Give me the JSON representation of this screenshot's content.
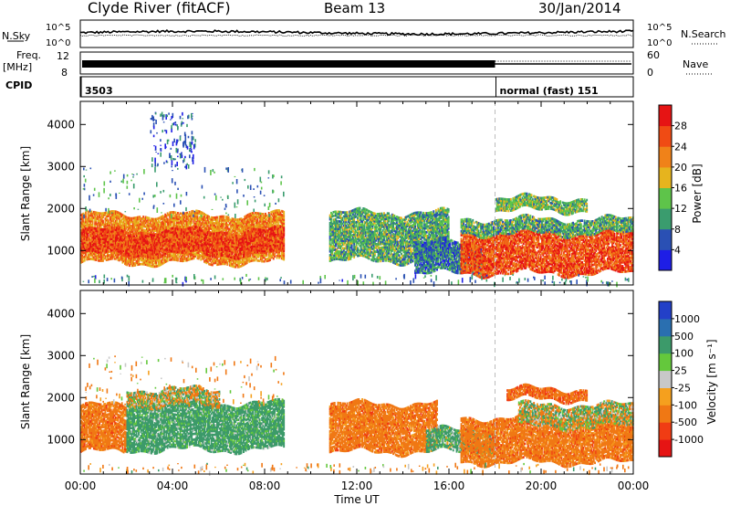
{
  "header": {
    "station": "Clyde River (fitACF)",
    "beam": "Beam 13",
    "date": "30/Jan/2014"
  },
  "noise_panel": {
    "left_label": "N.Sky",
    "left_ticks": [
      "10^5",
      "10^0"
    ],
    "right_label": "N.Search",
    "right_ticks": [
      "10^5",
      "10^0"
    ]
  },
  "freq_panel": {
    "left_label_line1": "Freq.",
    "left_label_line2": "[MHz]",
    "left_ticks": [
      "12",
      "8"
    ],
    "right_label": "Nave",
    "right_ticks": [
      "60",
      "0"
    ]
  },
  "cpid_panel": {
    "label": "CPID",
    "segments": [
      {
        "start_hour": 0,
        "text": "3503"
      },
      {
        "start_hour": 18,
        "text": "normal (fast) 151"
      }
    ]
  },
  "time_axis": {
    "title": "Time UT",
    "ticks": [
      "00:00",
      "04:00",
      "08:00",
      "12:00",
      "16:00",
      "20:00",
      "00:00"
    ],
    "range_hours": [
      0,
      24
    ]
  },
  "range_axis": {
    "title": "Slant Range [km]",
    "ticks": [
      "1000",
      "2000",
      "3000",
      "4000"
    ],
    "range_km": [
      180,
      4550
    ]
  },
  "power_colorbar": {
    "title": "Power [dB]",
    "ticks": [
      "4",
      "8",
      "12",
      "16",
      "20",
      "24",
      "28"
    ],
    "colors": [
      "#1e1ee6",
      "#2a50b4",
      "#3a9c6e",
      "#5ec44a",
      "#e6b41e",
      "#f08219",
      "#f04b14",
      "#e61414"
    ]
  },
  "velocity_colorbar": {
    "title": "Velocity [m s⁻¹]",
    "ticks": [
      "1000",
      "500",
      "100",
      "25",
      "-25",
      "-100",
      "-500",
      "-1000"
    ],
    "colors": [
      "#2340c8",
      "#2a6fb0",
      "#3c9a6a",
      "#64c83c",
      "#c8c8c8",
      "#f5a01e",
      "#f07814",
      "#f03c14",
      "#e61414"
    ]
  },
  "chart_data": [
    {
      "type": "heatmap",
      "title": "Power",
      "xlabel": "Time UT",
      "ylabel": "Slant Range [km]",
      "x_range_hours": [
        0,
        24
      ],
      "y_range_km": [
        180,
        4550
      ],
      "value_unit": "dB",
      "value_range": [
        0,
        30
      ],
      "blobs": [
        {
          "t0": 0.0,
          "t1": 8.8,
          "r0": 700,
          "r1": 1850,
          "value": 22
        },
        {
          "t0": 0.0,
          "t1": 8.8,
          "r0": 900,
          "r1": 1450,
          "value": 27
        },
        {
          "t0": 10.8,
          "t1": 16.0,
          "r0": 750,
          "r1": 1900,
          "value": 12
        },
        {
          "t0": 14.5,
          "t1": 17.5,
          "r0": 450,
          "r1": 1200,
          "value": 8
        },
        {
          "t0": 16.5,
          "t1": 24.0,
          "r0": 450,
          "r1": 1400,
          "value": 26
        },
        {
          "t0": 16.5,
          "t1": 24.0,
          "r0": 1400,
          "r1": 1750,
          "value": 12
        },
        {
          "t0": 18.0,
          "t1": 22.0,
          "r0": 1950,
          "r1": 2250,
          "value": 13
        }
      ],
      "scatter_ranges": [
        {
          "t0": 0.0,
          "t1": 8.8,
          "r0": 1850,
          "r1": 3000,
          "value": 10
        },
        {
          "t0": 0.0,
          "t1": 24.0,
          "r0": 250,
          "r1": 450,
          "value": 9
        },
        {
          "t0": 3.0,
          "t1": 5.0,
          "r0": 3000,
          "r1": 4300,
          "value": 6
        }
      ]
    },
    {
      "type": "heatmap",
      "title": "Velocity",
      "xlabel": "Time UT",
      "ylabel": "Slant Range [km]",
      "x_range_hours": [
        0,
        24
      ],
      "y_range_km": [
        180,
        4550
      ],
      "value_unit": "m s-1",
      "value_range": [
        -1000,
        1000
      ],
      "blobs": [
        {
          "t0": 0.0,
          "t1": 2.0,
          "r0": 700,
          "r1": 1800,
          "value": -300
        },
        {
          "t0": 2.0,
          "t1": 8.8,
          "r0": 750,
          "r1": 1850,
          "value": 250
        },
        {
          "t0": 2.0,
          "t1": 6.0,
          "r0": 1800,
          "r1": 2200,
          "value": 0
        },
        {
          "t0": 10.8,
          "t1": 15.5,
          "r0": 700,
          "r1": 1850,
          "value": -300
        },
        {
          "t0": 15.0,
          "t1": 18.0,
          "r0": 700,
          "r1": 1200,
          "value": 200
        },
        {
          "t0": 16.5,
          "t1": 24.0,
          "r0": 450,
          "r1": 1500,
          "value": -300
        },
        {
          "t0": 18.5,
          "t1": 22.0,
          "r0": 1950,
          "r1": 2200,
          "value": -400
        },
        {
          "t0": 19.0,
          "t1": 24.0,
          "r0": 1300,
          "r1": 1800,
          "value": 0
        }
      ],
      "scatter_ranges": [
        {
          "t0": 0.0,
          "t1": 8.8,
          "r0": 1850,
          "r1": 3000,
          "value": -150
        },
        {
          "t0": 0.0,
          "t1": 24.0,
          "r0": 250,
          "r1": 450,
          "value": -100
        }
      ]
    }
  ]
}
